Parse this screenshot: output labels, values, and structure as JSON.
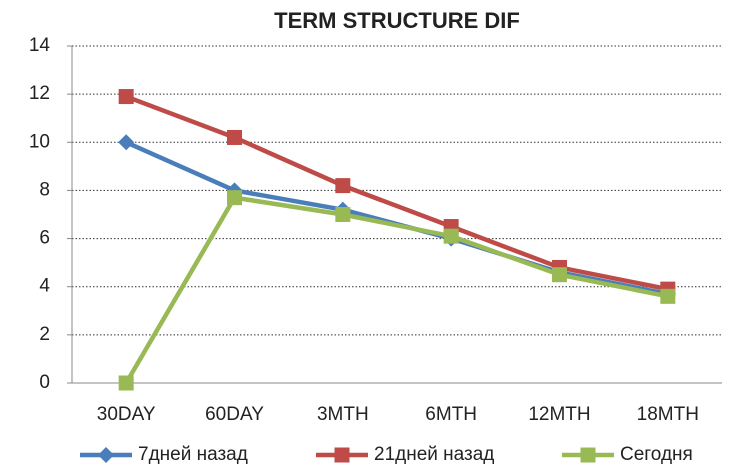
{
  "chart_data": {
    "type": "line",
    "title": "TERM STRUCTURE DIF",
    "categories": [
      "30DAY",
      "60DAY",
      "3MTH",
      "6MTH",
      "12MTH",
      "18MTH"
    ],
    "series": [
      {
        "name": "7дней назад",
        "color": "#4a7ebb",
        "marker": "diamond",
        "values": [
          10,
          8,
          7.2,
          6,
          4.6,
          3.7
        ]
      },
      {
        "name": "21дней назад",
        "color": "#be4b48",
        "marker": "square",
        "values": [
          11.9,
          10.2,
          8.2,
          6.5,
          4.8,
          3.9
        ]
      },
      {
        "name": "Сегодня",
        "color": "#98b954",
        "marker": "square",
        "values": [
          0,
          7.7,
          7.0,
          6.1,
          4.5,
          3.6
        ]
      }
    ],
    "ylim": [
      0,
      14
    ],
    "yticks": [
      0,
      2,
      4,
      6,
      8,
      10,
      12,
      14
    ],
    "grid": true,
    "legend": "bottom"
  }
}
